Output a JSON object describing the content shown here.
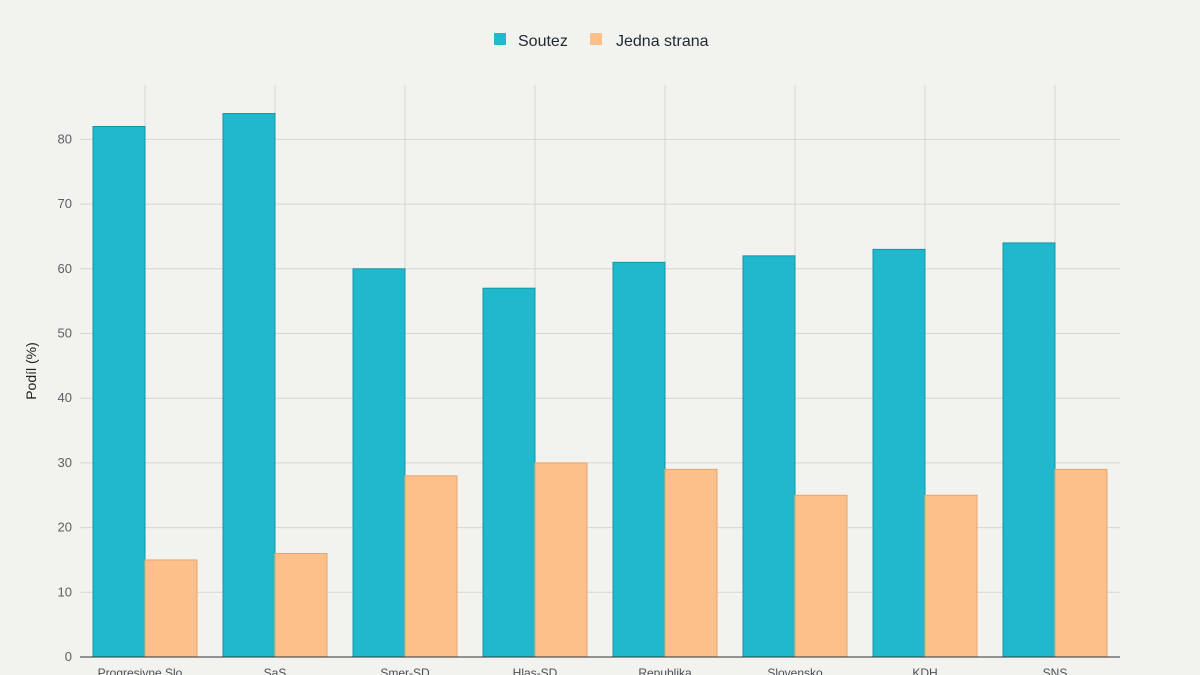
{
  "chart_data": {
    "type": "bar",
    "categories": [
      "Progresivne Slo...",
      "SaS",
      "Smer-SD",
      "Hlas-SD",
      "Republika",
      "Slovensko",
      "KDH",
      "SNS"
    ],
    "series": [
      {
        "name": "Soutez",
        "color": "#20b8cc",
        "values": [
          82,
          84,
          60,
          57,
          61,
          62,
          63,
          64
        ]
      },
      {
        "name": "Jedna strana",
        "color": "#fdc08a",
        "values": [
          15,
          16,
          28,
          30,
          29,
          25,
          25,
          29
        ]
      }
    ],
    "title": "",
    "xlabel": "",
    "ylabel": "Podíl (%)",
    "ylim": [
      0,
      85
    ],
    "yticks": [
      0,
      10,
      20,
      30,
      40,
      50,
      60,
      70,
      80
    ],
    "grid": true,
    "legend_position": "top-center"
  }
}
